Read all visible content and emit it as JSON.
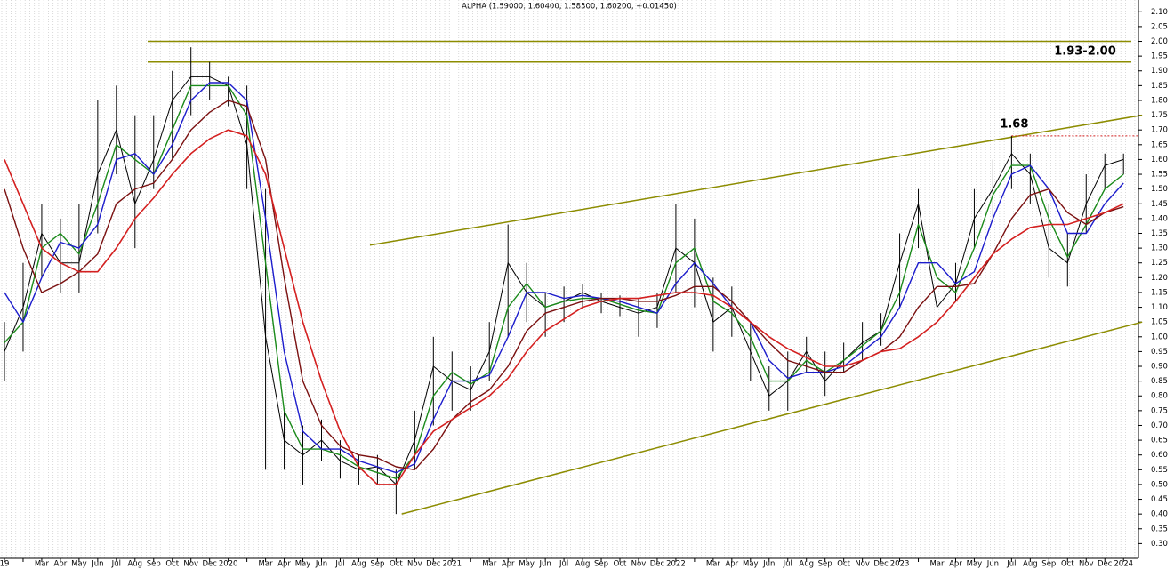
{
  "chart_data": {
    "type": "ohlc-line",
    "title": "ALPHA (1.59000, 1.60400, 1.58500, 1.60200, +0.01450)",
    "categories": [
      "19",
      null,
      "Mar",
      "Apr",
      "May",
      "Jun",
      "Jul",
      "Aug",
      "Sep",
      "Oct",
      "Nov",
      "Dec",
      "2020",
      null,
      "Mar",
      "Apr",
      "May",
      "Jun",
      "Jul",
      "Aug",
      "Sep",
      "Oct",
      "Nov",
      "Dec",
      "2021",
      null,
      "Mar",
      "Apr",
      "May",
      "Jun",
      "Jul",
      "Aug",
      "Sep",
      "Oct",
      "Nov",
      "Dec",
      "2022",
      null,
      "Mar",
      "Apr",
      "May",
      "Jun",
      "Jul",
      "Aug",
      "Sep",
      "Oct",
      "Nov",
      "Dec",
      "2023",
      null,
      "Mar",
      "Apr",
      "May",
      "Jun",
      "Jul",
      "Aug",
      "Sep",
      "Oct",
      "Nov",
      "Dec",
      "2024"
    ],
    "series": [
      {
        "color": "#000000",
        "width": 1,
        "values": [
          0.95,
          1.1,
          1.35,
          1.25,
          1.25,
          1.55,
          1.7,
          1.45,
          1.6,
          1.8,
          1.88,
          1.88,
          1.85,
          1.65,
          1.0,
          0.65,
          0.6,
          0.65,
          0.58,
          0.55,
          0.56,
          0.5,
          0.65,
          0.9,
          0.85,
          0.82,
          0.95,
          1.25,
          1.15,
          1.1,
          1.12,
          1.15,
          1.12,
          1.1,
          1.08,
          1.1,
          1.3,
          1.25,
          1.05,
          1.1,
          0.95,
          0.8,
          0.85,
          0.95,
          0.85,
          0.92,
          0.98,
          1.02,
          1.25,
          1.45,
          1.1,
          1.18,
          1.4,
          1.5,
          1.62,
          1.55,
          1.3,
          1.25,
          1.45,
          1.58,
          1.6
        ],
        "high": [
          1.05,
          1.25,
          1.45,
          1.4,
          1.45,
          1.8,
          1.85,
          1.75,
          1.75,
          1.9,
          1.98,
          1.93,
          1.88,
          1.85,
          1.5,
          0.75,
          0.7,
          0.72,
          0.65,
          0.6,
          0.6,
          0.55,
          0.75,
          1.0,
          0.95,
          0.9,
          1.05,
          1.38,
          1.25,
          1.15,
          1.17,
          1.18,
          1.15,
          1.14,
          1.13,
          1.15,
          1.45,
          1.4,
          1.2,
          1.17,
          1.05,
          0.9,
          0.95,
          1.0,
          0.95,
          0.98,
          1.05,
          1.08,
          1.35,
          1.5,
          1.3,
          1.25,
          1.5,
          1.6,
          1.68,
          1.62,
          1.45,
          1.35,
          1.55,
          1.62,
          1.62
        ],
        "low": [
          0.85,
          0.95,
          1.2,
          1.15,
          1.15,
          1.35,
          1.55,
          1.3,
          1.5,
          1.6,
          1.75,
          1.8,
          1.78,
          1.5,
          0.55,
          0.55,
          0.5,
          0.58,
          0.52,
          0.5,
          0.5,
          0.4,
          0.55,
          0.7,
          0.75,
          0.75,
          0.85,
          1.0,
          1.05,
          1.0,
          1.05,
          1.1,
          1.08,
          1.07,
          1.0,
          1.03,
          1.15,
          1.1,
          0.95,
          1.0,
          0.85,
          0.75,
          0.75,
          0.88,
          0.8,
          0.88,
          0.92,
          0.97,
          1.1,
          1.3,
          1.0,
          1.12,
          1.3,
          1.4,
          1.5,
          1.45,
          1.2,
          1.17,
          1.35,
          1.5,
          1.55
        ]
      },
      {
        "color": "#1a8a1a",
        "width": 1.4,
        "values": [
          0.98,
          1.05,
          1.3,
          1.35,
          1.28,
          1.45,
          1.65,
          1.6,
          1.55,
          1.7,
          1.85,
          1.85,
          1.85,
          1.75,
          1.25,
          0.75,
          0.62,
          0.62,
          0.6,
          0.56,
          0.54,
          0.52,
          0.6,
          0.8,
          0.88,
          0.84,
          0.88,
          1.1,
          1.18,
          1.1,
          1.12,
          1.13,
          1.13,
          1.11,
          1.09,
          1.08,
          1.25,
          1.3,
          1.12,
          1.08,
          1.0,
          0.85,
          0.85,
          0.92,
          0.88,
          0.92,
          0.97,
          1.02,
          1.15,
          1.38,
          1.2,
          1.15,
          1.3,
          1.48,
          1.58,
          1.58,
          1.4,
          1.27,
          1.38,
          1.5,
          1.55
        ]
      },
      {
        "color": "#1c1ccc",
        "width": 1.4,
        "values": [
          1.15,
          1.05,
          1.2,
          1.32,
          1.3,
          1.38,
          1.6,
          1.62,
          1.55,
          1.65,
          1.8,
          1.86,
          1.86,
          1.8,
          1.4,
          0.95,
          0.68,
          0.62,
          0.62,
          0.58,
          0.56,
          0.54,
          0.57,
          0.72,
          0.85,
          0.85,
          0.87,
          1.0,
          1.15,
          1.15,
          1.13,
          1.14,
          1.13,
          1.12,
          1.1,
          1.08,
          1.18,
          1.25,
          1.18,
          1.1,
          1.05,
          0.92,
          0.86,
          0.88,
          0.88,
          0.9,
          0.95,
          1.0,
          1.1,
          1.25,
          1.25,
          1.18,
          1.22,
          1.4,
          1.55,
          1.58,
          1.5,
          1.35,
          1.35,
          1.45,
          1.52
        ]
      },
      {
        "color": "#7a1010",
        "width": 1.4,
        "values": [
          1.5,
          1.3,
          1.15,
          1.18,
          1.22,
          1.28,
          1.45,
          1.5,
          1.52,
          1.6,
          1.7,
          1.76,
          1.8,
          1.78,
          1.6,
          1.2,
          0.85,
          0.7,
          0.63,
          0.6,
          0.59,
          0.56,
          0.55,
          0.62,
          0.72,
          0.78,
          0.82,
          0.9,
          1.02,
          1.08,
          1.1,
          1.12,
          1.13,
          1.13,
          1.12,
          1.12,
          1.14,
          1.17,
          1.17,
          1.12,
          1.05,
          0.98,
          0.92,
          0.9,
          0.88,
          0.88,
          0.92,
          0.95,
          1.0,
          1.1,
          1.17,
          1.17,
          1.18,
          1.28,
          1.4,
          1.48,
          1.5,
          1.42,
          1.38,
          1.42,
          1.44
        ]
      },
      {
        "color": "#d42020",
        "width": 1.6,
        "values": [
          1.6,
          1.45,
          1.3,
          1.25,
          1.22,
          1.22,
          1.3,
          1.4,
          1.47,
          1.55,
          1.62,
          1.67,
          1.7,
          1.68,
          1.55,
          1.3,
          1.05,
          0.85,
          0.68,
          0.56,
          0.5,
          0.5,
          0.6,
          0.68,
          0.72,
          0.76,
          0.8,
          0.86,
          0.95,
          1.02,
          1.06,
          1.1,
          1.12,
          1.13,
          1.13,
          1.14,
          1.15,
          1.15,
          1.14,
          1.1,
          1.05,
          1.0,
          0.96,
          0.93,
          0.9,
          0.9,
          0.92,
          0.95,
          0.96,
          1.0,
          1.05,
          1.12,
          1.2,
          1.28,
          1.33,
          1.37,
          1.38,
          1.38,
          1.4,
          1.42,
          1.45
        ]
      }
    ],
    "levels": [
      {
        "value": 2.0,
        "color": "#8c8c00"
      },
      {
        "value": 1.93,
        "color": "#8c8c00"
      }
    ],
    "trendlines": [
      {
        "x": [
          19.6,
          61
        ],
        "y": [
          1.31,
          1.75
        ],
        "color": "#8c8c00"
      },
      {
        "x": [
          21.3,
          61
        ],
        "y": [
          0.4,
          1.05
        ],
        "color": "#8c8c00"
      }
    ],
    "annotations": [
      {
        "text": "1.93-2.00",
        "value": 1.965,
        "color": "#1a8a1a"
      },
      {
        "text": "1.68",
        "value": 1.68,
        "color": "#1a8a1a",
        "line_color": "#d42020"
      }
    ],
    "ylim": [
      0.25,
      2.14
    ],
    "yticks": [
      {
        "value": 0.3,
        "label": "0.30"
      },
      {
        "value": 0.35,
        "label": "0.35"
      },
      {
        "value": 0.4,
        "label": "0.40"
      },
      {
        "value": 0.45,
        "label": "0.45"
      },
      {
        "value": 0.5,
        "label": "0.50"
      },
      {
        "value": 0.55,
        "label": "0.55"
      },
      {
        "value": 0.6,
        "label": "0.60"
      },
      {
        "value": 0.65,
        "label": "0.65"
      },
      {
        "value": 0.7,
        "label": "0.70"
      },
      {
        "value": 0.75,
        "label": "0.75"
      },
      {
        "value": 0.8,
        "label": "0.80"
      },
      {
        "value": 0.85,
        "label": "0.85"
      },
      {
        "value": 0.9,
        "label": "0.90"
      },
      {
        "value": 0.95,
        "label": "0.95"
      },
      {
        "value": 1.0,
        "label": "1.00"
      },
      {
        "value": 1.05,
        "label": "1.05"
      },
      {
        "value": 1.1,
        "label": "1.10"
      },
      {
        "value": 1.15,
        "label": "1.15"
      },
      {
        "value": 1.2,
        "label": "1.20"
      },
      {
        "value": 1.25,
        "label": "1.25"
      },
      {
        "value": 1.3,
        "label": "1.30"
      },
      {
        "value": 1.35,
        "label": "1.35"
      },
      {
        "value": 1.4,
        "label": "1.40"
      },
      {
        "value": 1.45,
        "label": "1.45"
      },
      {
        "value": 1.5,
        "label": "1.50"
      },
      {
        "value": 1.55,
        "label": "1.55"
      },
      {
        "value": 1.6,
        "label": "1.60"
      },
      {
        "value": 1.65,
        "label": "1.65"
      },
      {
        "value": 1.7,
        "label": "1.70"
      },
      {
        "value": 1.75,
        "label": "1.75"
      },
      {
        "value": 1.8,
        "label": "1.80"
      },
      {
        "value": 1.85,
        "label": "1.85"
      },
      {
        "value": 1.9,
        "label": "1.90"
      },
      {
        "value": 1.95,
        "label": "1.95"
      },
      {
        "value": 2.0,
        "label": "2.00"
      },
      {
        "value": 2.05,
        "label": "2.05"
      },
      {
        "value": 2.1,
        "label": "2.10"
      }
    ],
    "grid": true
  }
}
